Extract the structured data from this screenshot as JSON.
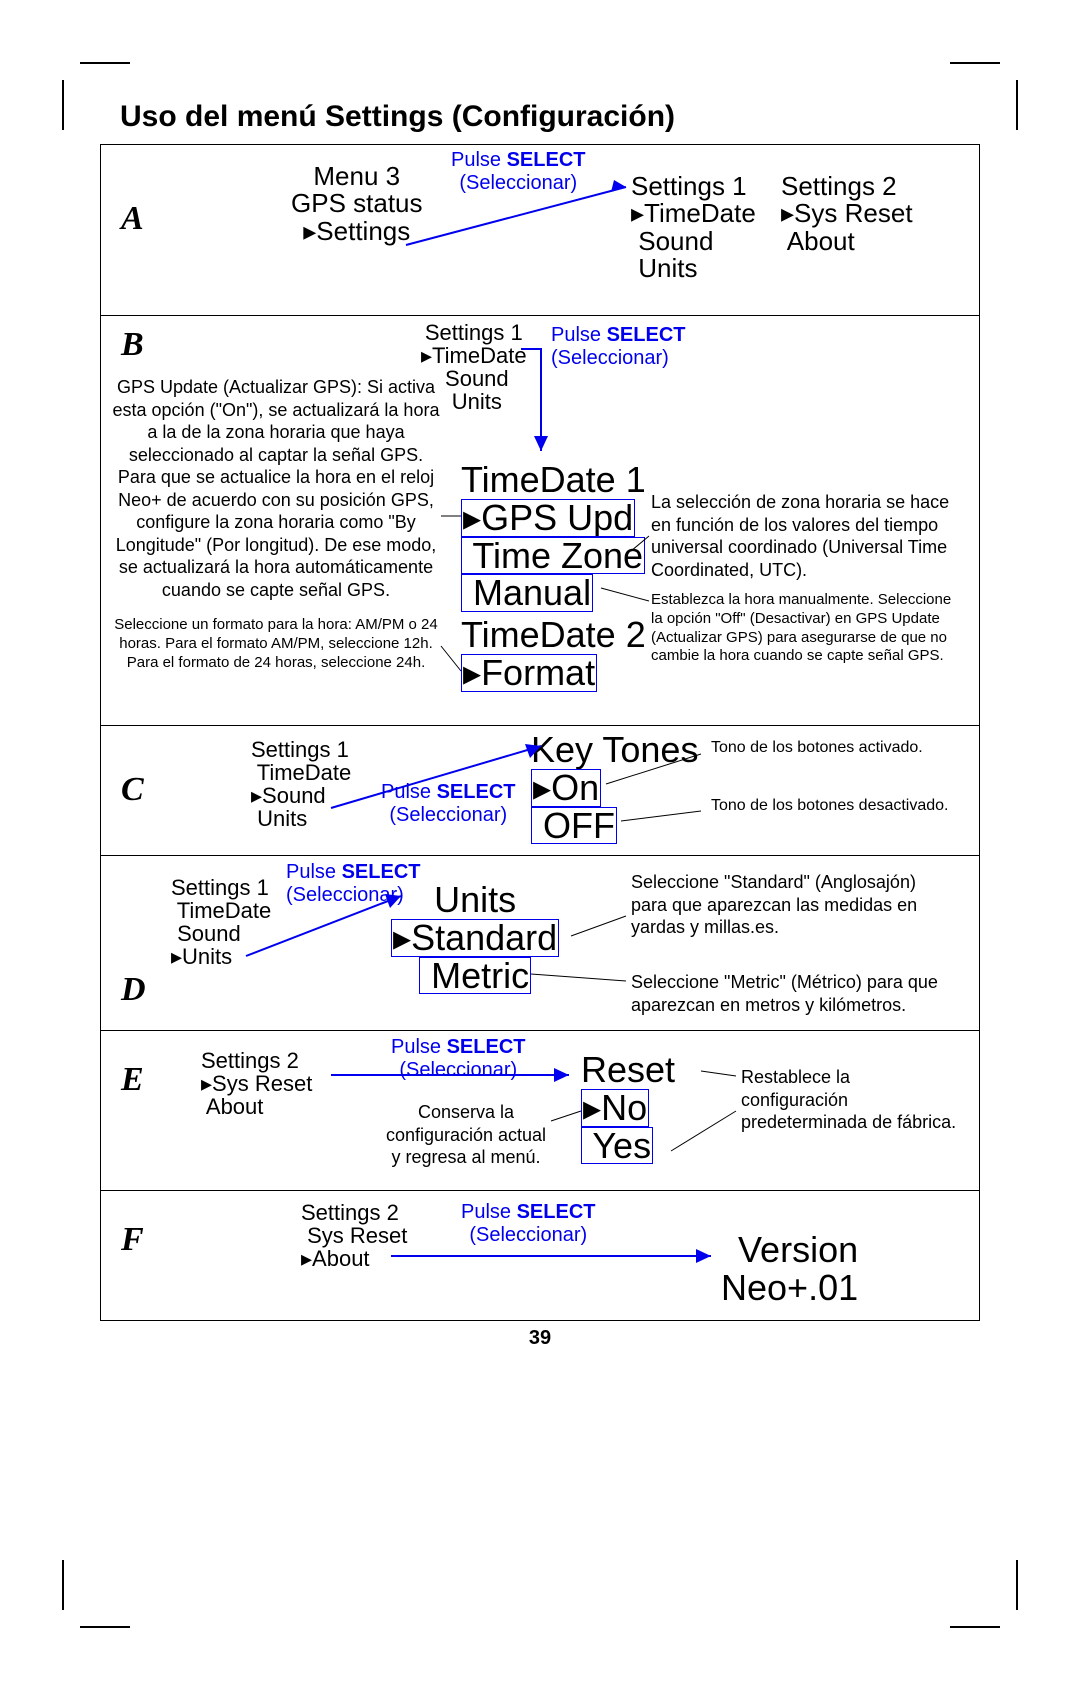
{
  "colors": {
    "blue": "#0000EE",
    "black": "#000000",
    "bg": "#ffffff"
  },
  "title": "Uso del menú Settings (Configuración)",
  "page_number": "39",
  "select_label_line1": "Pulse SELECT",
  "select_label_line2": "(Seleccionar)",
  "A": {
    "letter": "A",
    "menu3": "Menu 3\nGPS status\n▸Settings",
    "settings1": "Settings 1\n▸TimeDate\n Sound\n Units",
    "settings2": "Settings 2\n▸Sys Reset\n About"
  },
  "B": {
    "letter": "B",
    "settings1": "Settings 1\n▸TimeDate\n Sound\n Units",
    "timedate1_title": "TimeDate 1",
    "timedate1_items": [
      "▸GPS Upd",
      " Time Zone",
      " Manual"
    ],
    "timedate2_title": "TimeDate 2",
    "timedate2_item": "▸Format",
    "note_left": "GPS Update (Actualizar GPS): Si activa esta opción (\"On\"), se actualizará la hora a la de la zona horaria que haya seleccionado al captar la señal GPS. Para que se actualice la hora en el reloj Neo+ de acuerdo con su posición GPS, configure la zona horaria como \"By Longitude\" (Por longitud). De ese modo, se actualizará la hora automáticamente cuando se capte señal GPS.",
    "note_left_small": "Seleccione un formato para la hora: AM/PM o 24 horas. Para el formato AM/PM, seleccione 12h. Para el formato de 24 horas, seleccione 24h.",
    "note_right_tz": "La selección de zona horaria se hace en función de los valores del tiempo universal coordinado (Universal Time Coordinated, UTC).",
    "note_right_manual": "Establezca la hora manualmente. Seleccione la opción \"Off\" (Desactivar) en GPS Update (Actualizar GPS) para asegurarse de que no cambie la hora cuando se capte señal GPS."
  },
  "C": {
    "letter": "C",
    "settings1": "Settings 1\n TimeDate\n▸Sound\n Units",
    "keytones_title": "Key Tones",
    "keytones_items": [
      "▸On",
      " OFF"
    ],
    "note_on": "Tono de los botones activado.",
    "note_off": "Tono de los botones desactivado."
  },
  "D": {
    "letter": "D",
    "settings1": "Settings 1\n TimeDate\n Sound\n▸Units",
    "units_title": "Units",
    "units_items": [
      "▸Standard",
      " Metric"
    ],
    "note_std": "Seleccione \"Standard\" (Anglosajón) para que aparezcan las medidas en yardas y millas.es.",
    "note_met": "Seleccione \"Metric\" (Métrico) para que aparezcan en metros y kilómetros."
  },
  "E": {
    "letter": "E",
    "settings2": "Settings 2\n▸Sys Reset\n About",
    "reset_title": "Reset",
    "reset_items": [
      "▸No",
      " Yes"
    ],
    "note_no": "Conserva la configuración actual y regresa al menú.",
    "note_yes": "Restablece la configuración predeterminada de fábrica."
  },
  "F": {
    "letter": "F",
    "settings2": "Settings 2\n Sys Reset\n▸About",
    "version": "Version\nNeo+.01"
  }
}
